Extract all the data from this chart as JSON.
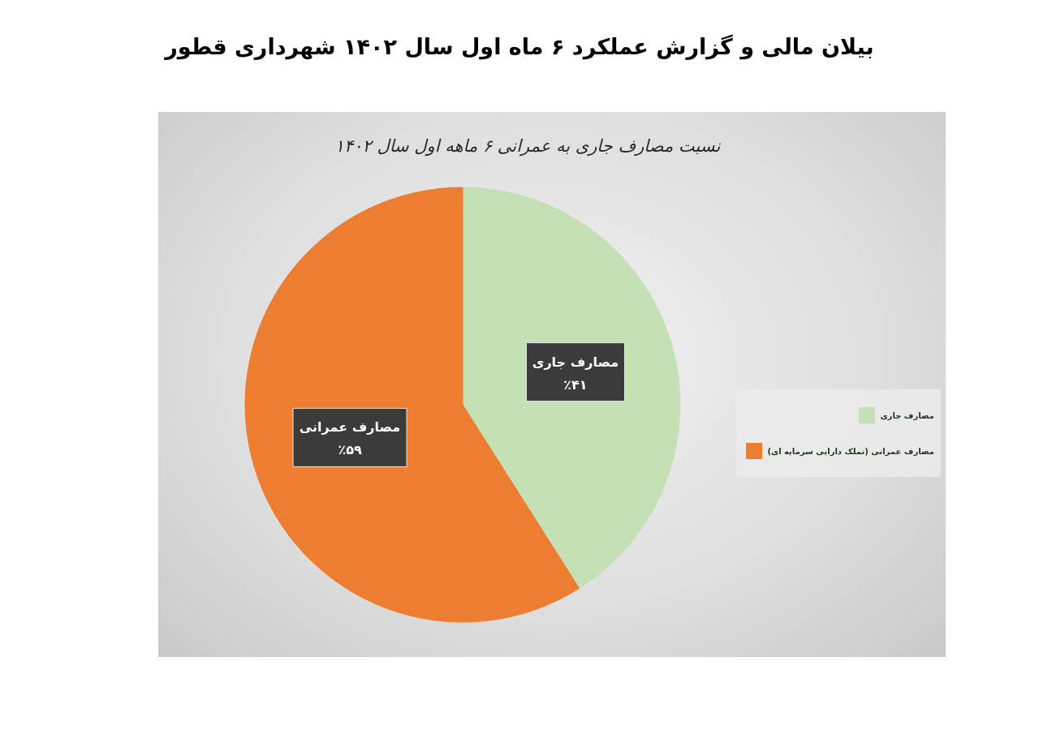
{
  "chart_data": {
    "type": "pie",
    "title": "بیلان مالی و گزارش عملکرد ۶ ماه اول سال ۱۴۰۲ شهرداری قطور",
    "subtitle": "نسبت مصارف جاری به عمرانی ۶ ماهه اول سال ۱۴۰۲",
    "categories": [
      "مصارف جاری",
      "مصارف عمرانی (تملک دارایی سرمایه ای)"
    ],
    "values": [
      41,
      59
    ],
    "colors": [
      "#c5e0b4",
      "#ed7d31"
    ],
    "value_labels": [
      "مصارف جاری\n٪۴۱",
      "مصارف عمرانی\n٪۵۹"
    ],
    "legend": "right"
  }
}
